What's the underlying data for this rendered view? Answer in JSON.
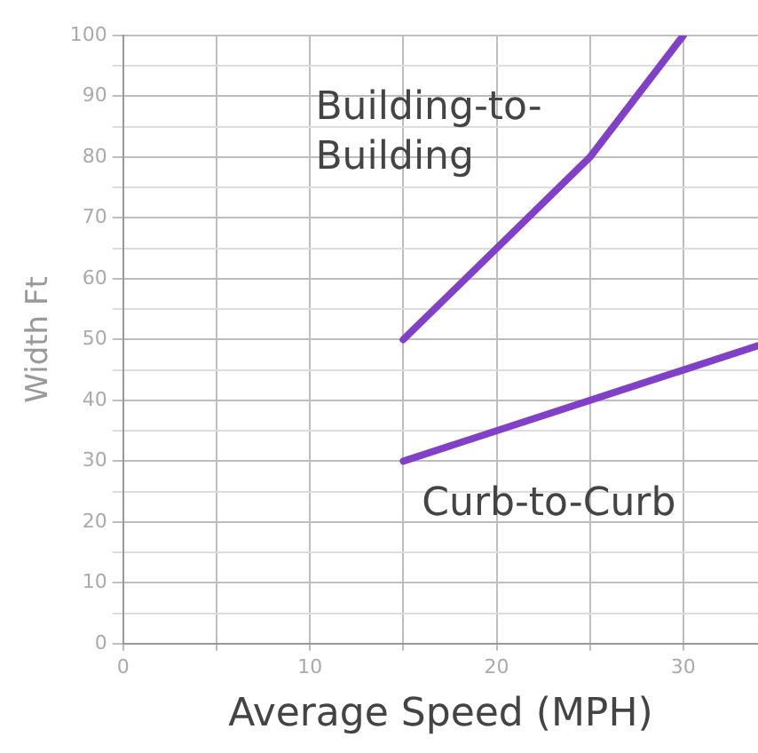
{
  "chart_data": {
    "type": "line",
    "xlabel": "Average Speed (MPH)",
    "ylabel": "Width Ft",
    "xlim": [
      0,
      34
    ],
    "xticks": [
      0,
      {
        "value": 5,
        "label": null
      },
      10,
      {
        "value": 15,
        "label": null
      },
      20,
      {
        "value": 25,
        "label": null
      },
      30
    ],
    "ylim": [
      0,
      100
    ],
    "yticks": [
      0,
      {
        "value": 5,
        "label": null
      },
      10,
      {
        "value": 15,
        "label": null
      },
      20,
      {
        "value": 25,
        "label": null
      },
      30,
      {
        "value": 35,
        "label": null
      },
      40,
      {
        "value": 45,
        "label": null
      },
      50,
      {
        "value": 55,
        "label": null
      },
      60,
      {
        "value": 65,
        "label": null
      },
      70,
      {
        "value": 75,
        "label": null
      },
      80,
      {
        "value": 85,
        "label": null
      },
      90,
      {
        "value": 95,
        "label": null
      },
      100
    ],
    "grid": true,
    "legend": false,
    "marker": "none",
    "line_style": "solid",
    "series": [
      {
        "x": [
          15,
          25,
          30
        ],
        "values": [
          50,
          80,
          100
        ],
        "color": "#8040c8"
      },
      {
        "x": [
          15,
          34
        ],
        "values": [
          30,
          49
        ],
        "color": "#8040c8"
      }
    ],
    "annotations": [
      "Building-to-Building",
      "Curb-to-Curb"
    ]
  }
}
